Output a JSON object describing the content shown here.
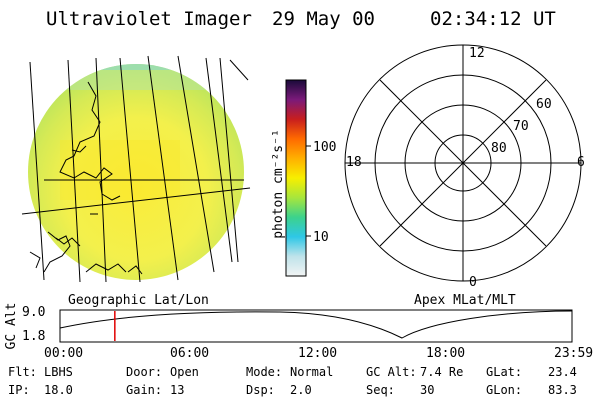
{
  "header": {
    "instrument": "Ultraviolet Imager",
    "date": "29 May 00",
    "time": "02:34:12 UT"
  },
  "colorbar": {
    "unit_label": "photon cm⁻²s⁻¹",
    "ticks": [
      "100",
      "10"
    ],
    "gradient_stops": [
      "#1a0a3a",
      "#7a1a7a",
      "#c81e1e",
      "#ff6a00",
      "#ffb000",
      "#f7ef00",
      "#a8e63c",
      "#3cd28c",
      "#2ec7e6",
      "#bfe3ea",
      "#f2f4f4"
    ]
  },
  "left_panel": {
    "caption": "Geographic Lat/Lon"
  },
  "right_panel": {
    "caption": "Apex MLat/MLT",
    "mlt_labels": [
      "12",
      "18",
      "6",
      "0"
    ],
    "mlat_labels": [
      "60",
      "70",
      "80"
    ]
  },
  "orbit_plot": {
    "ylabel": "GC Alt",
    "y_ticks": [
      "9.0",
      "1.8"
    ],
    "x_ticks": [
      "00:00",
      "06:00",
      "12:00",
      "18:00",
      "23:59"
    ],
    "marker_time_hours": 2.57,
    "line_color": "#000000",
    "marker_color": "#e00000"
  },
  "info": {
    "row1": [
      {
        "label": "Flt:",
        "value": "LBHS"
      },
      {
        "label": "Door:",
        "value": "Open"
      },
      {
        "label": "Mode:",
        "value": "Normal"
      },
      {
        "label": "GC Alt:",
        "value": "7.4 Re"
      },
      {
        "label": "GLat:",
        "value": "23.4"
      }
    ],
    "row2": [
      {
        "label": "IP:",
        "value": "18.0"
      },
      {
        "label": "Gain:",
        "value": "13"
      },
      {
        "label": "Dsp:",
        "value": "2.0"
      },
      {
        "label": "Seq:",
        "value": "30"
      },
      {
        "label": "GLon:",
        "value": "83.3"
      }
    ]
  }
}
